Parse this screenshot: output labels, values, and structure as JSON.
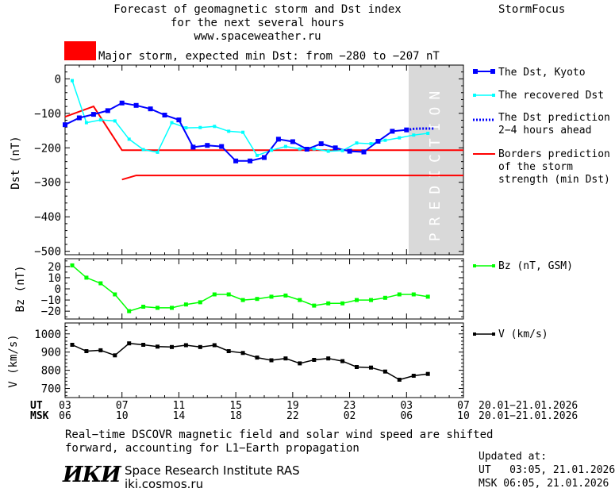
{
  "header": {
    "title_line1": "Forecast of geomagnetic storm and Dst index",
    "title_line2": "for the next several hours",
    "website": "www.spaceweather.ru",
    "brand": "StormFocus",
    "storm_text": "Major storm, expected min Dst: from −280 to −207 nT",
    "storm_color": "#ff0000"
  },
  "legend": {
    "dst_kyoto": "The Dst, Kyoto",
    "dst_recovered": "The recovered Dst",
    "dst_prediction_1": "The Dst prediction",
    "dst_prediction_2": "2−4 hours ahead",
    "borders_1": "Borders prediction",
    "borders_2": "of the storm",
    "borders_3": "strength (min Dst)",
    "bz": "Bz (nT, GSM)",
    "v": "V (km/s)"
  },
  "prediction_label": "PREDICTION",
  "time_axis": {
    "ut_label": "UT",
    "msk_label": "MSK",
    "ut_ticks": [
      "03",
      "07",
      "11",
      "15",
      "19",
      "23",
      "03",
      "07"
    ],
    "msk_ticks": [
      "06",
      "10",
      "14",
      "18",
      "22",
      "02",
      "06",
      "10"
    ],
    "ut_range": "20.01−21.01.2026",
    "msk_range": "20.01−21.01.2026"
  },
  "footer": {
    "note_line1": "Real−time DSCOVR magnetic field and solar wind speed are shifted",
    "note_line2": "forward, accounting for L1−Earth propagation",
    "logo_text": "ИКИ",
    "institute": "Space Research Institute RAS",
    "site": "iki.cosmos.ru",
    "updated_label": "Updated at:",
    "updated_ut": "UT   03:05, 21.01.2026",
    "updated_msk": "MSK 06:05, 21.01.2026"
  },
  "colors": {
    "kyoto": "#0000ff",
    "recovered": "#00ffff",
    "borders": "#ff0000",
    "bz": "#00ff00",
    "v": "#000000",
    "prediction_band": "#d9d9d9"
  },
  "chart_data": [
    {
      "type": "line",
      "title": "Forecast of geomagnetic storm and Dst index",
      "ylabel": "Dst (nT)",
      "xlabel": "UT",
      "xlim": [
        3,
        31
      ],
      "ylim": [
        -510,
        40
      ],
      "yticks": [
        0,
        -100,
        -200,
        -300,
        -400,
        -500
      ],
      "prediction_start": 27,
      "series": [
        {
          "name": "The Dst, Kyoto",
          "x": [
            3,
            4,
            5,
            6,
            7,
            8,
            9,
            10,
            11,
            12,
            13,
            14,
            15,
            16,
            17,
            18,
            19,
            20,
            21,
            22,
            23,
            24,
            25,
            26,
            27
          ],
          "y": [
            -133,
            -113,
            -103,
            -92,
            -70,
            -77,
            -87,
            -105,
            -119,
            -198,
            -193,
            -196,
            -238,
            -238,
            -228,
            -175,
            -182,
            -204,
            -188,
            -200,
            -210,
            -212,
            -181,
            -152,
            -148
          ]
        },
        {
          "name": "The recovered Dst",
          "x": [
            3.5,
            4.5,
            5.5,
            6.5,
            7.5,
            8.5,
            9.5,
            10.5,
            11.5,
            12.5,
            13.5,
            14.5,
            15.5,
            16.5,
            17.5,
            18.5,
            19.5,
            20.5,
            21.5,
            22.5,
            23.5,
            24.5,
            25.5,
            26.5,
            27.5,
            28.5
          ],
          "y": [
            -5,
            -127,
            -119,
            -122,
            -175,
            -205,
            -213,
            -127,
            -142,
            -141,
            -138,
            -152,
            -155,
            -222,
            -207,
            -196,
            -203,
            -203,
            -210,
            -208,
            -186,
            -188,
            -178,
            -171,
            -163,
            -158
          ]
        },
        {
          "name": "The Dst prediction 2−4 hours ahead",
          "x": [
            27,
            27.5,
            28,
            28.5,
            29
          ],
          "y": [
            -148,
            -145,
            -144,
            -144,
            -144
          ]
        },
        {
          "name": "Borders prediction of the storm strength (min Dst)",
          "segments": [
            {
              "x": [
                3,
                5,
                7,
                31
              ],
              "y": [
                -110,
                -80,
                -207,
                -207
              ]
            },
            {
              "x": [
                7,
                8,
                31
              ],
              "y": [
                -292,
                -280,
                -280
              ]
            }
          ]
        }
      ]
    },
    {
      "type": "line",
      "ylabel": "Bz (nT)",
      "ylim": [
        -27,
        27
      ],
      "yticks": [
        20,
        10,
        0,
        -10,
        -20
      ],
      "series": [
        {
          "name": "Bz (nT, GSM)",
          "x": [
            3.5,
            4.5,
            5.5,
            6.5,
            7.5,
            8.5,
            9.5,
            10.5,
            11.5,
            12.5,
            13.5,
            14.5,
            15.5,
            16.5,
            17.5,
            18.5,
            19.5,
            20.5,
            21.5,
            22.5,
            23.5,
            24.5,
            25.5,
            26.5,
            27.5,
            28.5
          ],
          "y": [
            21,
            10,
            5,
            -5,
            -20,
            -16,
            -17,
            -17,
            -14,
            -12,
            -5,
            -5,
            -10,
            -9,
            -7,
            -6,
            -10,
            -15,
            -13,
            -13,
            -10,
            -10,
            -8,
            -5,
            -5,
            -7
          ]
        }
      ]
    },
    {
      "type": "line",
      "ylabel": "V (km/s)",
      "ylim": [
        650,
        1060
      ],
      "yticks": [
        1000,
        900,
        800,
        700
      ],
      "series": [
        {
          "name": "V (km/s)",
          "x": [
            3.5,
            4.5,
            5.5,
            6.5,
            7.5,
            8.5,
            9.5,
            10.5,
            11.5,
            12.5,
            13.5,
            14.5,
            15.5,
            16.5,
            17.5,
            18.5,
            19.5,
            20.5,
            21.5,
            22.5,
            23.5,
            24.5,
            25.5,
            26.5,
            27.5,
            28.5
          ],
          "y": [
            940,
            905,
            910,
            882,
            948,
            940,
            930,
            928,
            938,
            928,
            938,
            905,
            895,
            870,
            855,
            865,
            838,
            857,
            865,
            850,
            818,
            815,
            793,
            748,
            770,
            780
          ]
        }
      ]
    }
  ]
}
